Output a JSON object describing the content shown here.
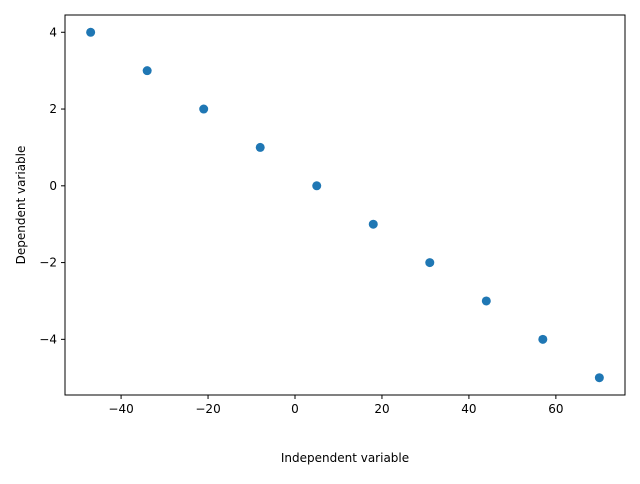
{
  "chart_data": {
    "type": "scatter",
    "title": "",
    "xlabel": "Independent variable",
    "ylabel": "Dependent variable",
    "xlim": [
      -52.9,
      75.9
    ],
    "ylim": [
      -5.45,
      4.45
    ],
    "x_ticks": [
      -40,
      -20,
      0,
      20,
      40,
      60
    ],
    "y_ticks": [
      -4,
      -2,
      0,
      2,
      4
    ],
    "x_tick_labels": [
      "−40",
      "−20",
      "0",
      "20",
      "40",
      "60"
    ],
    "y_tick_labels": [
      "−4",
      "−2",
      "0",
      "2",
      "4"
    ],
    "grid": false,
    "legend": "none",
    "marker_color": "#1f77b4",
    "points": [
      {
        "x": -47,
        "y": 4
      },
      {
        "x": -34,
        "y": 3
      },
      {
        "x": -21,
        "y": 2
      },
      {
        "x": -8,
        "y": 1
      },
      {
        "x": 5,
        "y": 0
      },
      {
        "x": 18,
        "y": -1
      },
      {
        "x": 31,
        "y": -2
      },
      {
        "x": 44,
        "y": -3
      },
      {
        "x": 57,
        "y": -4
      },
      {
        "x": 70,
        "y": -5
      }
    ]
  }
}
